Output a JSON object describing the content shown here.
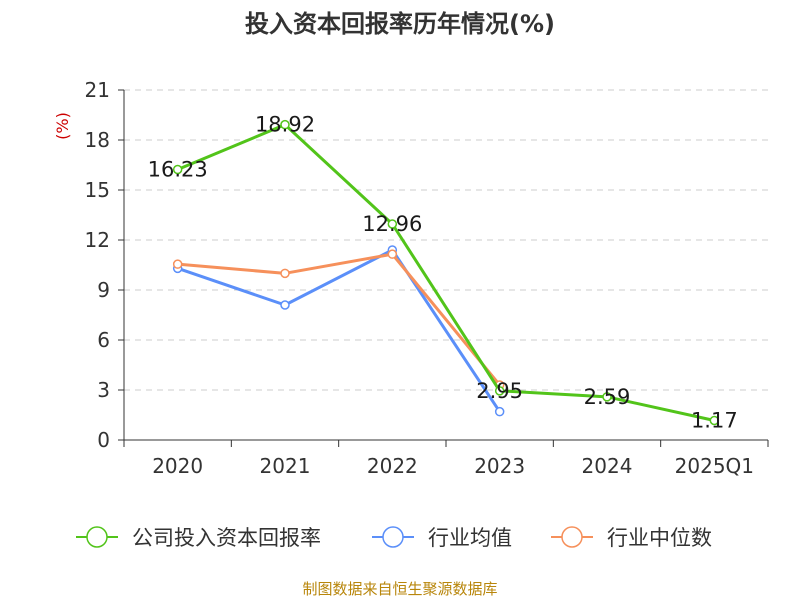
{
  "chart_data": {
    "type": "line",
    "title": "投入资本回报率历年情况(%)",
    "unit_label": "(%)",
    "categories": [
      "2020",
      "2021",
      "2022",
      "2023",
      "2024",
      "2025Q1"
    ],
    "ylim": [
      0,
      21
    ],
    "yticks": [
      0,
      3,
      6,
      9,
      12,
      15,
      18,
      21
    ],
    "grid": true,
    "legend_position": "bottom",
    "series": [
      {
        "name": "公司投入资本回报率",
        "color": "#52c41a",
        "values": [
          16.23,
          18.92,
          12.96,
          2.95,
          2.59,
          1.17
        ],
        "labels": [
          "16.23",
          "18.92",
          "12.96",
          "2.95",
          "2.59",
          "1.17"
        ]
      },
      {
        "name": "行业均值",
        "color": "#5b8ff9",
        "values": [
          10.3,
          8.1,
          11.4,
          1.7,
          null,
          null
        ]
      },
      {
        "name": "行业中位数",
        "color": "#f6905b",
        "values": [
          10.55,
          10.0,
          11.15,
          3.3,
          null,
          null
        ]
      }
    ]
  },
  "source": "制图数据来自恒生聚源数据库"
}
